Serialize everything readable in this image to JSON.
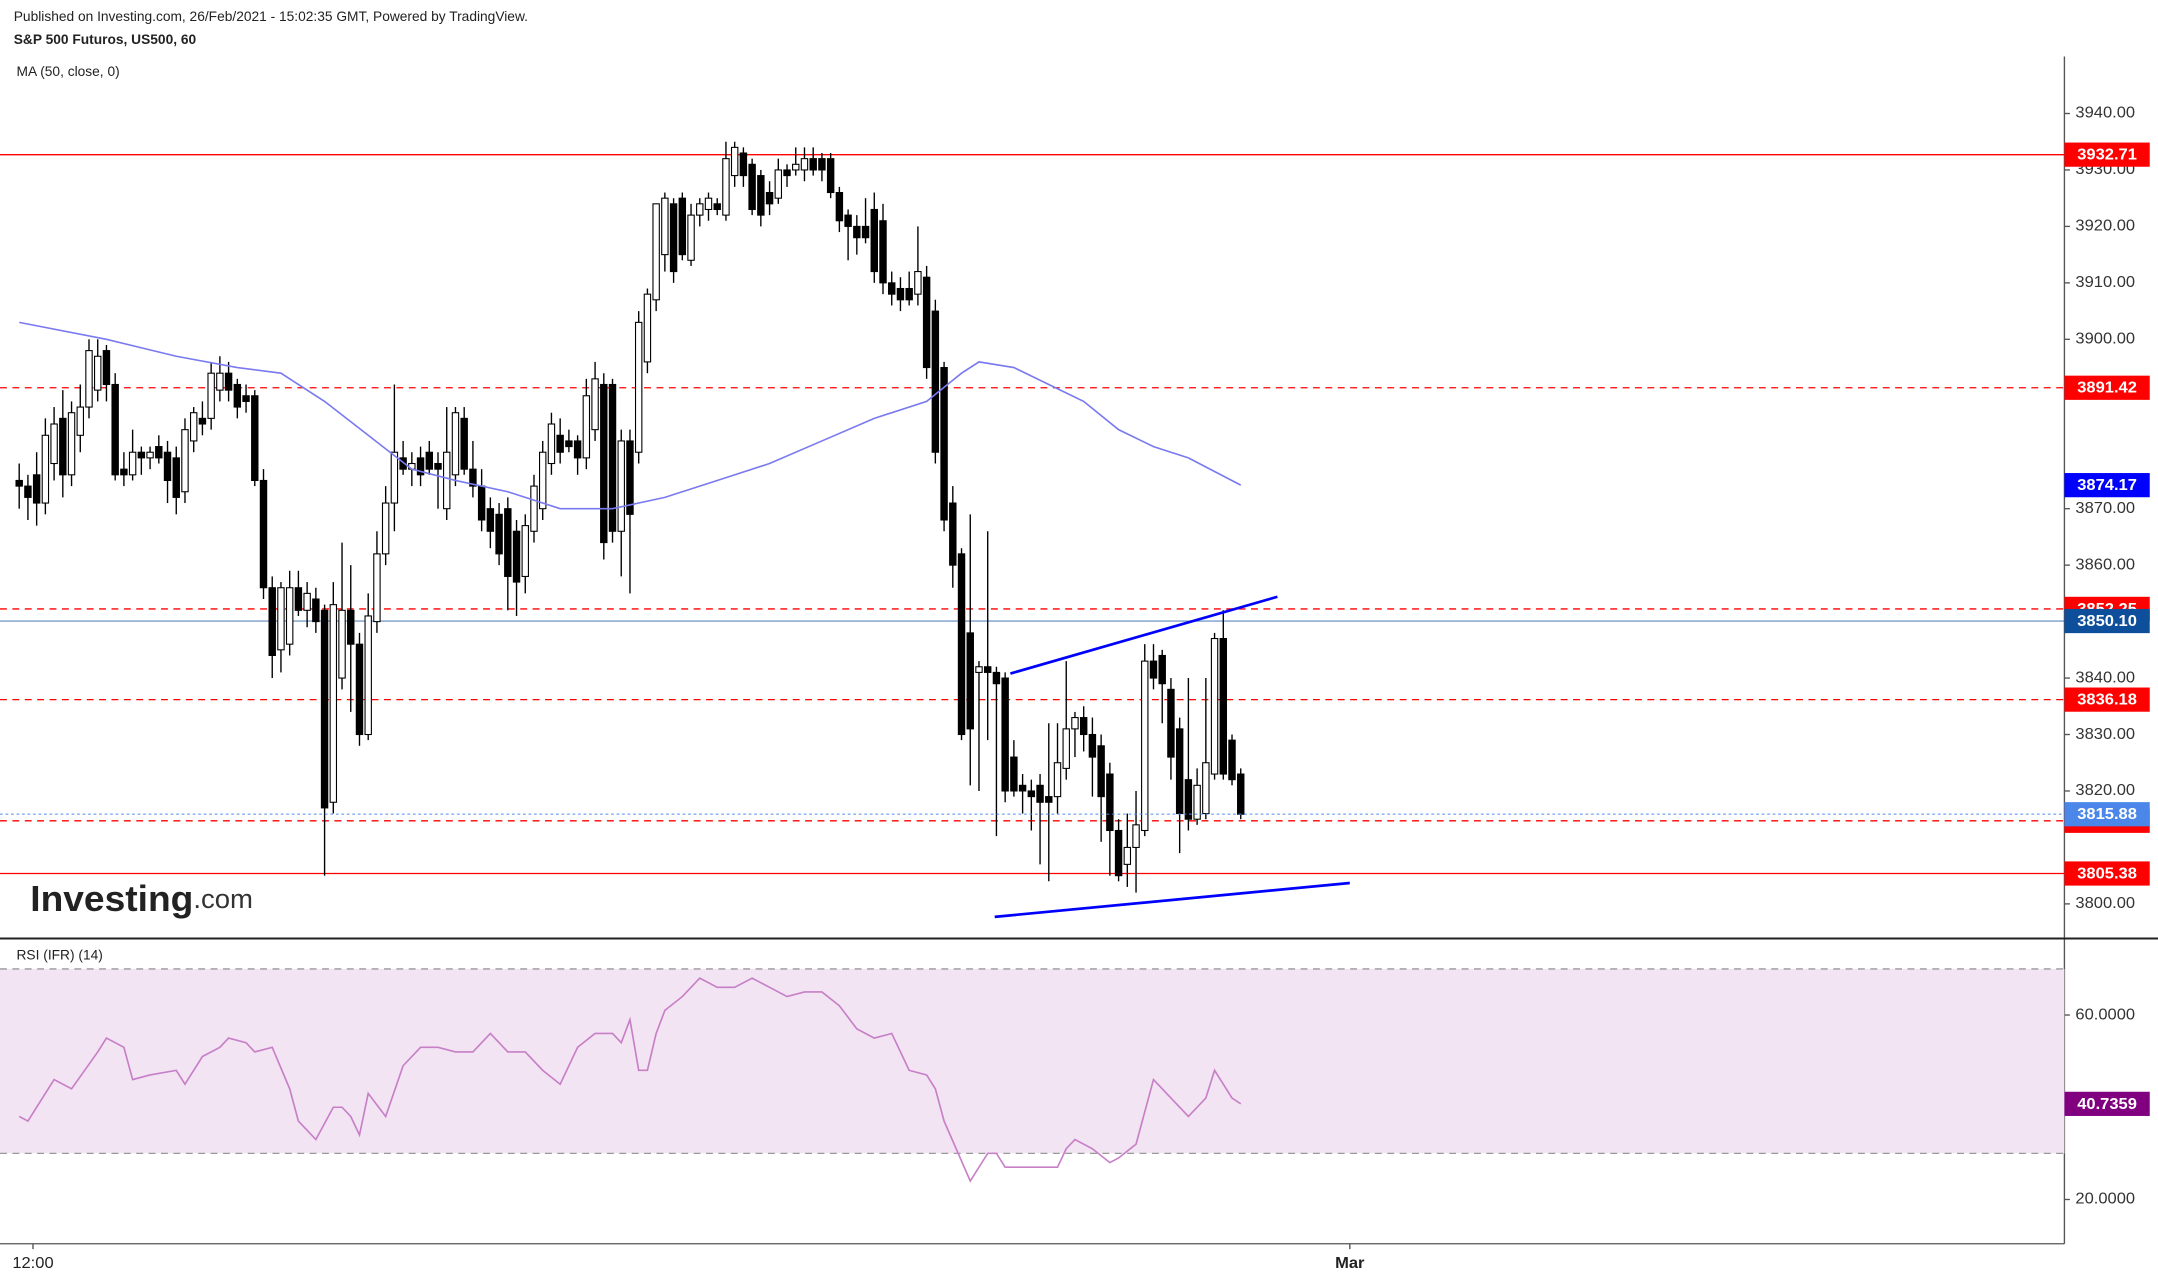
{
  "chart_data": [
    {
      "type": "candlestick",
      "subtitle": "Published on Investing.com, 26/Feb/2021 - 15:02:35 GMT, Powered by TradingView.",
      "title": "S&P 500 Futuros, US500, 60",
      "logo": "Investing",
      "logo_suffix": ".com",
      "up_color": "#ffffff",
      "down_color": "#000000",
      "xlim": [
        -2.2,
        234.4
      ],
      "ylim": [
        3794.1,
        3950.1
      ],
      "xticks": [
        {
          "value": 1.58,
          "label": "12:00"
        },
        {
          "value": 152.5,
          "label": "Mar"
        }
      ],
      "yticks": [
        {
          "value": 3800,
          "label": "3800.00"
        },
        {
          "value": 3820,
          "label": "3820.00"
        },
        {
          "value": 3830,
          "label": "3830.00"
        },
        {
          "value": 3840,
          "label": "3840.00"
        },
        {
          "value": 3860,
          "label": "3860.00"
        },
        {
          "value": 3870,
          "label": "3870.00"
        },
        {
          "value": 3900,
          "label": "3900.00"
        },
        {
          "value": 3910,
          "label": "3910.00"
        },
        {
          "value": 3920,
          "label": "3920.00"
        },
        {
          "value": 3930,
          "label": "3930.00"
        },
        {
          "value": 3940,
          "label": "3940.00"
        }
      ],
      "open": [
        3875,
        3874,
        3876,
        3871,
        3878,
        3886,
        3876,
        3883,
        3888,
        3891,
        3898,
        3892,
        3877,
        3876,
        3880,
        3879,
        3881,
        3880,
        3879,
        3873,
        3882,
        3886,
        3886,
        3891,
        3894,
        3892,
        3890,
        3890,
        3875,
        3856,
        3845,
        3846,
        3856,
        3852,
        3854,
        3852,
        3818,
        3840,
        3852,
        3846,
        3830,
        3850,
        3862,
        3871,
        3879,
        3877,
        3879,
        3880,
        3878,
        3870,
        3876,
        3886,
        3877,
        3874,
        3870,
        3869,
        3870,
        3866,
        3858,
        3866,
        3870,
        3878,
        3883,
        3882,
        3882,
        3879,
        3884,
        3892,
        3892,
        3866,
        3882,
        3880,
        3896,
        3907,
        3915,
        3924,
        3925,
        3914,
        3922,
        3923,
        3924,
        3922,
        3929,
        3933,
        3931,
        3929,
        3926,
        3925,
        3930,
        3930,
        3930,
        3932,
        3932,
        3932,
        3926,
        3922,
        3920,
        3920,
        3923,
        3921,
        3910,
        3909,
        3909,
        3908,
        3911,
        3905,
        3895,
        3871,
        3862,
        3848,
        3841,
        3842,
        3841,
        3840,
        3826,
        3821,
        3820,
        3821,
        3819,
        3819,
        3824,
        3831,
        3833,
        3830,
        3828,
        3823,
        3813,
        3807,
        3810,
        3813,
        3843,
        3844,
        3838,
        3831,
        3822,
        3815,
        3816,
        3823,
        3847,
        3829,
        3823
      ],
      "high": [
        3878,
        3876,
        3880,
        3886,
        3888,
        3891,
        3889,
        3892,
        3900,
        3900,
        3899,
        3894,
        3880,
        3884,
        3881,
        3881,
        3883,
        3882,
        3881,
        3886,
        3888,
        3889,
        3896,
        3897,
        3896,
        3893,
        3892,
        3891,
        3877,
        3858,
        3857,
        3859,
        3859,
        3857,
        3856,
        3853,
        3857,
        3864,
        3860,
        3848,
        3855,
        3866,
        3874,
        3892,
        3882,
        3880,
        3881,
        3882,
        3880,
        3888,
        3888,
        3888,
        3882,
        3877,
        3872,
        3871,
        3872,
        3868,
        3869,
        3876,
        3882,
        3887,
        3886,
        3884,
        3883,
        3893,
        3896,
        3894,
        3893,
        3884,
        3884,
        3905,
        3909,
        3924,
        3926,
        3925,
        3926,
        3924,
        3925,
        3926,
        3925,
        3935,
        3935,
        3934,
        3932,
        3930,
        3928,
        3932,
        3931,
        3934,
        3934,
        3934,
        3933,
        3933,
        3927,
        3923,
        3922,
        3925,
        3926,
        3924,
        3912,
        3911,
        3912,
        3920,
        3913,
        3907,
        3896,
        3874,
        3863,
        3869,
        3843,
        3866,
        3842,
        3841,
        3829,
        3823,
        3822,
        3823,
        3832,
        3832,
        3843,
        3834,
        3835,
        3833,
        3830,
        3825,
        3815,
        3816,
        3820,
        3846,
        3846,
        3845,
        3840,
        3833,
        3840,
        3824,
        3840,
        3848,
        3852,
        3830,
        3824
      ],
      "low": [
        3870,
        3868,
        3867,
        3869,
        3875,
        3872,
        3874,
        3880,
        3886,
        3889,
        3889,
        3875,
        3874,
        3875,
        3876,
        3877,
        3878,
        3871,
        3869,
        3871,
        3880,
        3883,
        3884,
        3889,
        3889,
        3886,
        3887,
        3874,
        3854,
        3840,
        3841,
        3844,
        3851,
        3849,
        3848,
        3805,
        3816,
        3838,
        3834,
        3828,
        3829,
        3848,
        3860,
        3866,
        3876,
        3874,
        3874,
        3876,
        3870,
        3868,
        3874,
        3876,
        3872,
        3866,
        3863,
        3860,
        3852,
        3851,
        3855,
        3864,
        3868,
        3876,
        3878,
        3880,
        3876,
        3877,
        3882,
        3861,
        3864,
        3858,
        3855,
        3878,
        3894,
        3905,
        3912,
        3910,
        3914,
        3913,
        3920,
        3921,
        3922,
        3921,
        3927,
        3927,
        3922,
        3920,
        3922,
        3924,
        3927,
        3929,
        3928,
        3929,
        3928,
        3925,
        3919,
        3914,
        3915,
        3917,
        3910,
        3908,
        3906,
        3905,
        3906,
        3906,
        3893,
        3878,
        3866,
        3856,
        3829,
        3821,
        3820,
        3829,
        3812,
        3818,
        3819,
        3816,
        3813,
        3807,
        3804,
        3816,
        3822,
        3826,
        3827,
        3819,
        3811,
        3805,
        3804,
        3803,
        3802,
        3812,
        3838,
        3832,
        3822,
        3809,
        3813,
        3814,
        3815,
        3822,
        3822,
        3821,
        3815
      ],
      "close": [
        3874,
        3872,
        3871,
        3883,
        3885,
        3876,
        3887,
        3888,
        3898,
        3897,
        3892,
        3876,
        3876,
        3880,
        3879,
        3880,
        3879,
        3875,
        3872,
        3884,
        3887,
        3885,
        3894,
        3894,
        3891,
        3888,
        3889,
        3875,
        3856,
        3844,
        3856,
        3856,
        3852,
        3855,
        3850,
        3817,
        3853,
        3852,
        3846,
        3830,
        3851,
        3862,
        3871,
        3880,
        3877,
        3878,
        3876,
        3877,
        3877,
        3880,
        3887,
        3877,
        3874,
        3868,
        3866,
        3862,
        3858,
        3857,
        3867,
        3874,
        3880,
        3885,
        3880,
        3881,
        3879,
        3890,
        3893,
        3864,
        3866,
        3882,
        3869,
        3903,
        3908,
        3924,
        3925,
        3912,
        3915,
        3922,
        3924,
        3925,
        3923,
        3932,
        3934,
        3929,
        3923,
        3922,
        3924,
        3930,
        3929,
        3931,
        3932,
        3930,
        3930,
        3926,
        3921,
        3920,
        3918,
        3918,
        3912,
        3910,
        3908,
        3907,
        3907,
        3912,
        3895,
        3880,
        3868,
        3860,
        3830,
        3831,
        3842,
        3841,
        3839,
        3820,
        3820,
        3820,
        3819,
        3818,
        3818,
        3825,
        3831,
        3833,
        3830,
        3826,
        3819,
        3813,
        3805,
        3810,
        3814,
        3843,
        3840,
        3839,
        3826,
        3816,
        3815,
        3821,
        3825,
        3847,
        3823,
        3822,
        3815.88
      ],
      "last_color": "#4a87e8",
      "ma": {
        "name": "MA (50, close, 0)",
        "color": "#7a7af0",
        "label_color": "#0000ff",
        "x": [
          0,
          10,
          18,
          25,
          30,
          35,
          40,
          45,
          50,
          56,
          62,
          68,
          74,
          80,
          86,
          92,
          98,
          104,
          108,
          110,
          114,
          118,
          122,
          126,
          130,
          134,
          140
        ],
        "values": [
          3903,
          3900,
          3897,
          3895,
          3894,
          3889,
          3883,
          3877,
          3875,
          3873,
          3870,
          3870,
          3872,
          3875,
          3878,
          3882,
          3886,
          3889,
          3894,
          3896,
          3895,
          3892,
          3889,
          3884,
          3881,
          3879,
          3874.17
        ]
      },
      "levels": [
        {
          "value": 3932.71,
          "color": "#ff0000",
          "line": "solid"
        },
        {
          "value": 3891.42,
          "color": "#ff0000",
          "line": "dashed"
        },
        {
          "value": 3852.25,
          "color": "#ff0000",
          "line": "dashed"
        },
        {
          "value": 3850.1,
          "label": "3850.10",
          "color": "#0d4f9a",
          "line": "solid"
        },
        {
          "value": 3836.18,
          "color": "#ff0000",
          "line": "dashed"
        },
        {
          "value": 3814.72,
          "color": "#ff0000",
          "line": "dashed"
        },
        {
          "value": 3805.38,
          "color": "#ff0000",
          "line": "solid"
        }
      ],
      "trendlines": [
        {
          "color": "#0000ff",
          "x": [
            113.6,
            144.2
          ],
          "values": [
            3840.8,
            3854.4
          ]
        },
        {
          "color": "#0000ff",
          "x": [
            111.8,
            152.5
          ],
          "values": [
            3797.7,
            3803.7
          ]
        }
      ]
    },
    {
      "type": "line",
      "title": "RSI (IFR) (14)",
      "color": "#c77fc7",
      "label_color": "#800080",
      "band_fill": "#f2e4f2",
      "bands": [
        30,
        70
      ],
      "ylim": [
        10.4,
        76
      ],
      "yticks": [
        {
          "value": 60,
          "label": "60.0000"
        },
        {
          "value": 20,
          "label": "20.0000"
        }
      ],
      "x": [
        0,
        1,
        4,
        6,
        9,
        10,
        12,
        13,
        15,
        18,
        19,
        21,
        23,
        24,
        26,
        27,
        29,
        31,
        32,
        34,
        36,
        37,
        38,
        39,
        40,
        42,
        44,
        46,
        48,
        50,
        52,
        54,
        56,
        58,
        60,
        62,
        64,
        66,
        68,
        69,
        70,
        71,
        72,
        73,
        74,
        76,
        78,
        80,
        82,
        84,
        86,
        88,
        90,
        92,
        94,
        96,
        98,
        100,
        102,
        104,
        105,
        106,
        109,
        111,
        112,
        113,
        116,
        119,
        120,
        121,
        123,
        125,
        126,
        128,
        130,
        131,
        134,
        135,
        136,
        137,
        139,
        140
      ],
      "values": [
        38,
        37,
        46,
        44,
        52,
        55,
        53,
        46,
        47,
        48,
        45,
        51,
        53,
        55,
        54,
        52,
        53,
        44,
        37,
        33,
        40,
        40,
        38,
        34,
        43,
        38,
        49,
        53,
        53,
        52,
        52,
        56,
        52,
        52,
        48,
        45,
        53,
        56,
        56,
        54,
        59,
        48,
        48,
        56,
        61,
        64,
        68,
        66,
        66,
        68,
        66,
        64,
        65,
        65,
        62,
        57,
        55,
        56,
        48,
        47,
        44,
        37,
        24,
        30,
        30,
        27,
        27,
        27,
        31,
        33,
        31,
        28,
        29,
        32,
        46,
        44,
        38,
        40,
        42,
        48,
        42,
        40.7359
      ]
    }
  ]
}
